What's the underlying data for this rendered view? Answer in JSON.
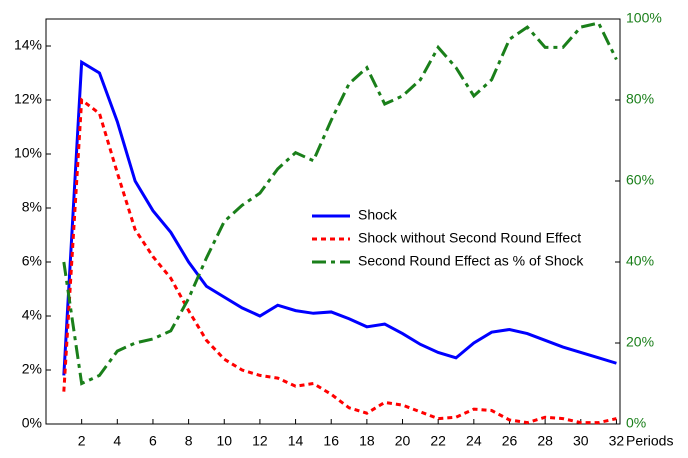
{
  "chart_data": {
    "type": "line",
    "x_label": "Periods",
    "x": [
      1,
      2,
      3,
      4,
      5,
      6,
      7,
      8,
      9,
      10,
      11,
      12,
      13,
      14,
      15,
      16,
      17,
      18,
      19,
      20,
      21,
      22,
      23,
      24,
      25,
      26,
      27,
      28,
      29,
      30,
      31,
      32
    ],
    "xlim": [
      0,
      32.2
    ],
    "xticks": [
      2,
      4,
      6,
      8,
      10,
      12,
      14,
      16,
      18,
      20,
      22,
      24,
      26,
      28,
      30,
      32
    ],
    "ylim": [
      0,
      15
    ],
    "yticks": [
      {
        "value": 0,
        "label": "0%"
      },
      {
        "value": 2,
        "label": "2%"
      },
      {
        "value": 4,
        "label": "4%"
      },
      {
        "value": 6,
        "label": "6%"
      },
      {
        "value": 8,
        "label": "8%"
      },
      {
        "value": 10,
        "label": "10%"
      },
      {
        "value": 12,
        "label": "12%"
      },
      {
        "value": 14,
        "label": "14%"
      }
    ],
    "y2lim": [
      0,
      100
    ],
    "y2ticks": [
      {
        "value": 0,
        "label": "0%"
      },
      {
        "value": 20,
        "label": "20%"
      },
      {
        "value": 40,
        "label": "40%"
      },
      {
        "value": 60,
        "label": "60%"
      },
      {
        "value": 80,
        "label": "80%"
      },
      {
        "value": 100,
        "label": "100%"
      }
    ],
    "y2_color": "#1a7f1a",
    "legend": "center-right",
    "series": [
      {
        "name": "Shock",
        "color": "#0000ff",
        "dash": "solid",
        "values": [
          1.8,
          13.4,
          13.0,
          11.2,
          9.0,
          7.9,
          7.1,
          6.0,
          5.1,
          4.7,
          4.3,
          4.0,
          4.4,
          4.2,
          4.1,
          4.15,
          3.9,
          3.6,
          3.7,
          3.35,
          2.95,
          2.65,
          2.45,
          3.0,
          3.4,
          3.5,
          3.35,
          3.1,
          2.85,
          2.65,
          2.45,
          2.25
        ]
      },
      {
        "name": "Shock without Second Round Effect",
        "color": "#ff0000",
        "dash": "dot",
        "values": [
          1.2,
          12.0,
          11.5,
          9.3,
          7.2,
          6.2,
          5.4,
          4.2,
          3.1,
          2.4,
          2.0,
          1.8,
          1.7,
          1.4,
          1.5,
          1.1,
          0.6,
          0.4,
          0.8,
          0.7,
          0.45,
          0.2,
          0.25,
          0.55,
          0.5,
          0.15,
          0.05,
          0.25,
          0.2,
          0.05,
          0.05,
          0.2
        ]
      },
      {
        "name": "Second Round Effect as % of Shock",
        "color": "#1a7f1a",
        "dash": "dashdot",
        "axis": "y2",
        "values": [
          40,
          10,
          12,
          18,
          20,
          21,
          23,
          31,
          41,
          50,
          54,
          57,
          63,
          67,
          65,
          75,
          84,
          88,
          79,
          81,
          85,
          93,
          88,
          81,
          85,
          95,
          98,
          93,
          93,
          98,
          99,
          90
        ]
      }
    ]
  }
}
